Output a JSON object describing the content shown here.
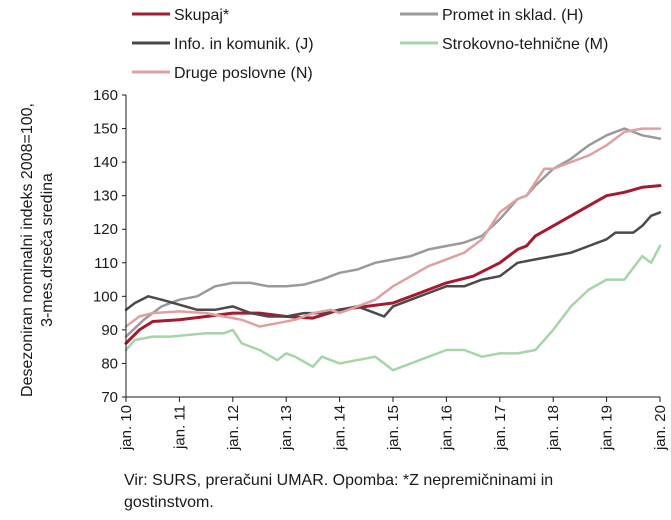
{
  "chart_data": {
    "type": "line",
    "title": "",
    "ylabel_line1": "Desezoniran nominalni indeks 2008=100,",
    "ylabel_line2": "3-mes.drseča sredina",
    "xlabel": "",
    "ylim": [
      70,
      160
    ],
    "yticks": [
      70,
      80,
      90,
      100,
      110,
      120,
      130,
      140,
      150,
      160
    ],
    "xlim": [
      0,
      120
    ],
    "xticks": [
      {
        "x": 0,
        "label": "jan. 10"
      },
      {
        "x": 12,
        "label": "jan. 11"
      },
      {
        "x": 24,
        "label": "jan. 12"
      },
      {
        "x": 36,
        "label": "jan. 13"
      },
      {
        "x": 48,
        "label": "jan. 14"
      },
      {
        "x": 60,
        "label": "jan. 15"
      },
      {
        "x": 72,
        "label": "jan. 16"
      },
      {
        "x": 84,
        "label": "jan. 17"
      },
      {
        "x": 96,
        "label": "jan. 18"
      },
      {
        "x": 108,
        "label": "jan. 19"
      },
      {
        "x": 120,
        "label": "jan. 20"
      }
    ],
    "x_unit": "months since jan. 10",
    "grid": false,
    "legend_position": "top",
    "series": [
      {
        "name": "Skupaj*",
        "color": "#a6192e",
        "width": 3,
        "points": [
          [
            0,
            86
          ],
          [
            3,
            90
          ],
          [
            6,
            92.5
          ],
          [
            12,
            93
          ],
          [
            18,
            94
          ],
          [
            24,
            95
          ],
          [
            30,
            95
          ],
          [
            36,
            94
          ],
          [
            42,
            93.5
          ],
          [
            48,
            96
          ],
          [
            54,
            97
          ],
          [
            60,
            98
          ],
          [
            66,
            101
          ],
          [
            72,
            104
          ],
          [
            78,
            106
          ],
          [
            84,
            110
          ],
          [
            88,
            114
          ],
          [
            90,
            115
          ],
          [
            92,
            118
          ],
          [
            96,
            121
          ],
          [
            100,
            124
          ],
          [
            104,
            127
          ],
          [
            108,
            130
          ],
          [
            112,
            131
          ],
          [
            116,
            132.5
          ],
          [
            120,
            133
          ]
        ]
      },
      {
        "name": "Promet in sklad. (H)",
        "color": "#9a9a9a",
        "width": 2.5,
        "points": [
          [
            0,
            88
          ],
          [
            4,
            93
          ],
          [
            8,
            97
          ],
          [
            12,
            99
          ],
          [
            16,
            100
          ],
          [
            20,
            103
          ],
          [
            24,
            104
          ],
          [
            28,
            104
          ],
          [
            32,
            103
          ],
          [
            36,
            103
          ],
          [
            40,
            103.5
          ],
          [
            44,
            105
          ],
          [
            48,
            107
          ],
          [
            52,
            108
          ],
          [
            56,
            110
          ],
          [
            60,
            111
          ],
          [
            64,
            112
          ],
          [
            68,
            114
          ],
          [
            72,
            115
          ],
          [
            76,
            116
          ],
          [
            80,
            118
          ],
          [
            84,
            123
          ],
          [
            88,
            129
          ],
          [
            90,
            130
          ],
          [
            92,
            133
          ],
          [
            96,
            138
          ],
          [
            100,
            141
          ],
          [
            104,
            145
          ],
          [
            108,
            148
          ],
          [
            112,
            150
          ],
          [
            116,
            148
          ],
          [
            120,
            147
          ]
        ]
      },
      {
        "name": "Info. in komunik. (J)",
        "color": "#4a4a4a",
        "width": 2.5,
        "points": [
          [
            0,
            96
          ],
          [
            2,
            98
          ],
          [
            5,
            100
          ],
          [
            8,
            99
          ],
          [
            12,
            97.5
          ],
          [
            16,
            96
          ],
          [
            20,
            96
          ],
          [
            24,
            97
          ],
          [
            28,
            95
          ],
          [
            32,
            94
          ],
          [
            36,
            94
          ],
          [
            40,
            95
          ],
          [
            44,
            95
          ],
          [
            48,
            96
          ],
          [
            52,
            97
          ],
          [
            56,
            95
          ],
          [
            58,
            94
          ],
          [
            60,
            97
          ],
          [
            64,
            99
          ],
          [
            68,
            101
          ],
          [
            72,
            103
          ],
          [
            76,
            103
          ],
          [
            80,
            105
          ],
          [
            84,
            106
          ],
          [
            88,
            110
          ],
          [
            92,
            111
          ],
          [
            96,
            112
          ],
          [
            100,
            113
          ],
          [
            104,
            115
          ],
          [
            108,
            117
          ],
          [
            110,
            119
          ],
          [
            114,
            119
          ],
          [
            116,
            121
          ],
          [
            118,
            124
          ],
          [
            120,
            125
          ]
        ]
      },
      {
        "name": "Strokovno-tehnične (M)",
        "color": "#a5d6a7",
        "width": 2.5,
        "points": [
          [
            0,
            84
          ],
          [
            2,
            87
          ],
          [
            6,
            88
          ],
          [
            10,
            88
          ],
          [
            14,
            88.5
          ],
          [
            18,
            89
          ],
          [
            22,
            89
          ],
          [
            24,
            90
          ],
          [
            26,
            86
          ],
          [
            30,
            84
          ],
          [
            34,
            81
          ],
          [
            36,
            83
          ],
          [
            38,
            82
          ],
          [
            42,
            79
          ],
          [
            44,
            82
          ],
          [
            48,
            80
          ],
          [
            52,
            81
          ],
          [
            56,
            82
          ],
          [
            58,
            80
          ],
          [
            60,
            78
          ],
          [
            64,
            80
          ],
          [
            68,
            82
          ],
          [
            72,
            84
          ],
          [
            76,
            84
          ],
          [
            80,
            82
          ],
          [
            84,
            83
          ],
          [
            88,
            83
          ],
          [
            92,
            84
          ],
          [
            96,
            90
          ],
          [
            100,
            97
          ],
          [
            104,
            102
          ],
          [
            108,
            105
          ],
          [
            112,
            105
          ],
          [
            116,
            112
          ],
          [
            118,
            110
          ],
          [
            120,
            115
          ]
        ]
      },
      {
        "name": "Druge poslovne (N)",
        "color": "#e0a0a0",
        "width": 2.5,
        "points": [
          [
            0,
            91
          ],
          [
            3,
            94
          ],
          [
            6,
            95
          ],
          [
            12,
            95.5
          ],
          [
            18,
            95
          ],
          [
            22,
            94
          ],
          [
            26,
            93
          ],
          [
            30,
            91
          ],
          [
            34,
            92
          ],
          [
            38,
            93
          ],
          [
            42,
            95
          ],
          [
            46,
            96
          ],
          [
            48,
            95
          ],
          [
            52,
            97
          ],
          [
            56,
            99
          ],
          [
            60,
            103
          ],
          [
            64,
            106
          ],
          [
            68,
            109
          ],
          [
            72,
            111
          ],
          [
            76,
            113
          ],
          [
            80,
            117
          ],
          [
            84,
            125
          ],
          [
            88,
            129
          ],
          [
            90,
            130
          ],
          [
            92,
            134
          ],
          [
            94,
            138
          ],
          [
            96,
            138
          ],
          [
            100,
            140
          ],
          [
            104,
            142
          ],
          [
            108,
            145
          ],
          [
            112,
            149
          ],
          [
            116,
            150
          ],
          [
            120,
            150
          ]
        ]
      }
    ]
  },
  "source_text": "Vir: SURS, preračuni UMAR. Opomba: *Z nepremičninami in gostinstvom."
}
